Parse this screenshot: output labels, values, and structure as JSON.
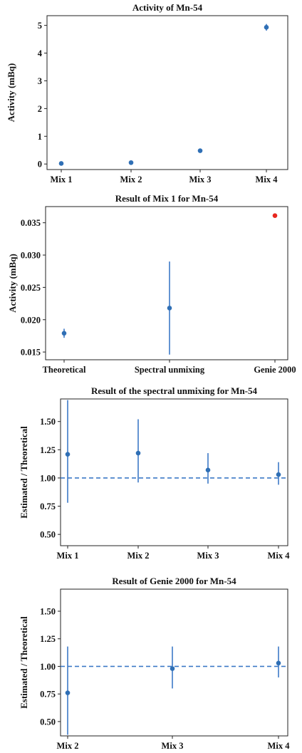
{
  "chart_data": [
    {
      "type": "scatter",
      "title": "Activity of Mn-54",
      "ylabel": "Activity (mBq)",
      "categories": [
        "Mix 1",
        "Mix 2",
        "Mix 3",
        "Mix 4"
      ],
      "ylim": [
        -0.2,
        5.35
      ],
      "yticks": [
        0,
        1,
        2,
        3,
        4,
        5
      ],
      "ytick_labels": [
        "0",
        "1",
        "2",
        "3",
        "4",
        "5"
      ],
      "series": [
        {
          "color": "#2f6fb5",
          "points": [
            {
              "cat": 0,
              "y": 0.02,
              "err": 0.005
            },
            {
              "cat": 1,
              "y": 0.05,
              "err": 0.01
            },
            {
              "cat": 2,
              "y": 0.48,
              "err": 0.03
            },
            {
              "cat": 3,
              "y": 4.93,
              "err": 0.12
            }
          ]
        }
      ]
    },
    {
      "type": "scatter",
      "title": "Result of Mix 1 for Mn-54",
      "ylabel": "Activity (mBq)",
      "categories": [
        "Theoretical",
        "Spectral unmixing",
        "Genie 2000"
      ],
      "ylim": [
        0.0138,
        0.0375
      ],
      "yticks": [
        0.015,
        0.02,
        0.025,
        0.03,
        0.035
      ],
      "ytick_labels": [
        "0.015",
        "0.020",
        "0.025",
        "0.030",
        "0.035"
      ],
      "series": [
        {
          "color": "#2f6fb5",
          "points": [
            {
              "cat": 0,
              "y": 0.0179,
              "err": 0.0007
            },
            {
              "cat": 1,
              "y": 0.0218,
              "err": 0.0072
            }
          ]
        },
        {
          "color": "#e8271f",
          "points": [
            {
              "cat": 2,
              "y": 0.0361,
              "err": 0
            }
          ]
        }
      ]
    },
    {
      "type": "scatter",
      "title": "Result of the spectral unmixing for Mn-54",
      "ylabel": "Estimated / Theoretical",
      "categories": [
        "Mix 1",
        "Mix 2",
        "Mix 3",
        "Mix 4"
      ],
      "ylim": [
        0.4,
        1.7
      ],
      "yticks": [
        0.5,
        0.75,
        1.0,
        1.25,
        1.5
      ],
      "ytick_labels": [
        "0.50",
        "0.75",
        "1.00",
        "1.25",
        "1.50"
      ],
      "reference_line": 1.0,
      "series": [
        {
          "color": "#2f6fb5",
          "points": [
            {
              "cat": 0,
              "y": 1.21,
              "err_low": 0.43,
              "err_high": 0.48
            },
            {
              "cat": 1,
              "y": 1.22,
              "err_low": 0.26,
              "err_high": 0.3
            },
            {
              "cat": 2,
              "y": 1.07,
              "err_low": 0.12,
              "err_high": 0.15
            },
            {
              "cat": 3,
              "y": 1.03,
              "err_low": 0.09,
              "err_high": 0.11
            }
          ]
        }
      ]
    },
    {
      "type": "scatter",
      "title": "Result of Genie 2000 for Mn-54",
      "ylabel": "Estimated / Theoretical",
      "categories": [
        "Mix 2",
        "Mix 3",
        "Mix 4"
      ],
      "ylim": [
        0.37,
        1.7
      ],
      "yticks": [
        0.5,
        0.75,
        1.0,
        1.25,
        1.5
      ],
      "ytick_labels": [
        "0.50",
        "0.75",
        "1.00",
        "1.25",
        "1.50"
      ],
      "reference_line": 1.0,
      "series": [
        {
          "color": "#2f6fb5",
          "points": [
            {
              "cat": 0,
              "y": 0.76,
              "err_low": 0.38,
              "err_high": 0.42
            },
            {
              "cat": 1,
              "y": 0.98,
              "err_low": 0.18,
              "err_high": 0.2
            },
            {
              "cat": 2,
              "y": 1.03,
              "err_low": 0.13,
              "err_high": 0.15
            }
          ]
        }
      ]
    }
  ]
}
